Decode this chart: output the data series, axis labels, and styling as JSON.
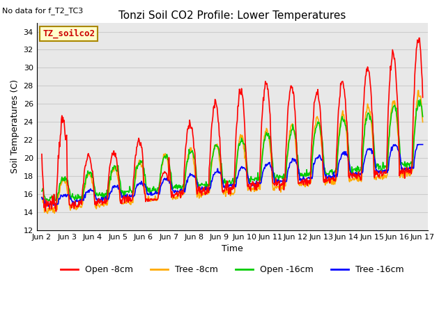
{
  "title": "Tonzi Soil CO2 Profile: Lower Temperatures",
  "subtitle": "No data for f_T2_TC3",
  "ylabel": "Soil Temperatures (C)",
  "xlabel": "Time",
  "ylim": [
    12,
    35
  ],
  "yticks": [
    12,
    14,
    16,
    18,
    20,
    22,
    24,
    26,
    28,
    30,
    32,
    34
  ],
  "xtick_labels": [
    "Jun 2",
    "Jun 3",
    "Jun 4",
    "Jun 5",
    "Jun 6",
    "Jun 7",
    "Jun 8",
    "Jun 9",
    "Jun 10",
    "Jun 11",
    "Jun 12",
    "Jun 13",
    "Jun 14",
    "Jun 15",
    "Jun 16",
    "Jun 17"
  ],
  "legend_labels": [
    "Open -8cm",
    "Tree -8cm",
    "Open -16cm",
    "Tree -16cm"
  ],
  "legend_colors": [
    "#ff0000",
    "#ffaa00",
    "#00cc00",
    "#0000ff"
  ],
  "box_label": "TZ_soilco2",
  "box_color": "#ffffcc",
  "box_edge_color": "#aa8800",
  "box_text_color": "#cc0000",
  "grid_color": "#cccccc",
  "bg_color": "#e8e8e8",
  "line_width": 1.2,
  "n_points": 720,
  "colors": {
    "open8": "#ff0000",
    "tree8": "#ffaa00",
    "open16": "#00cc00",
    "tree16": "#0000ff"
  }
}
